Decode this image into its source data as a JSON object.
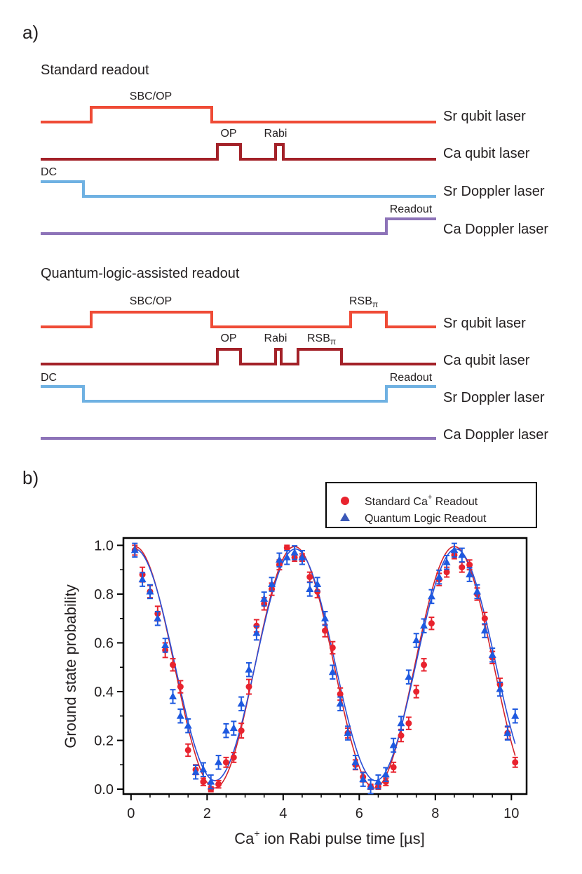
{
  "panel_a": {
    "label": "a)",
    "standard": {
      "title": "Standard readout",
      "channels": [
        {
          "name": "Sr qubit laser",
          "color": "#ef4b36",
          "pulses": [
            {
              "label": "SBC/OP",
              "label_sub": ""
            }
          ]
        },
        {
          "name": "Ca qubit laser",
          "color": "#a32128",
          "pulses": [
            {
              "label": "OP",
              "label_sub": ""
            },
            {
              "label": "Rabi",
              "label_sub": ""
            }
          ]
        },
        {
          "name": "Sr Doppler laser",
          "color": "#6fb1e2",
          "pulses": [
            {
              "label": "DC",
              "label_sub": ""
            }
          ]
        },
        {
          "name": "Ca Doppler laser",
          "color": "#8d73b8",
          "pulses": [
            {
              "label": "Readout",
              "label_sub": ""
            }
          ]
        }
      ]
    },
    "quantum": {
      "title": "Quantum-logic-assisted readout",
      "channels": [
        {
          "name": "Sr qubit laser",
          "color": "#ef4b36",
          "pulses": [
            {
              "label": "SBC/OP",
              "label_sub": ""
            },
            {
              "label": "RSB",
              "label_sub": "π"
            }
          ]
        },
        {
          "name": "Ca qubit laser",
          "color": "#a32128",
          "pulses": [
            {
              "label": "OP",
              "label_sub": ""
            },
            {
              "label": "Rabi",
              "label_sub": ""
            },
            {
              "label": "RSB",
              "label_sub": "π"
            }
          ]
        },
        {
          "name": "Sr Doppler laser",
          "color": "#6fb1e2",
          "pulses": [
            {
              "label": "DC",
              "label_sub": ""
            },
            {
              "label": "Readout",
              "label_sub": ""
            }
          ]
        },
        {
          "name": "Ca Doppler laser",
          "color": "#8d73b8",
          "pulses": []
        }
      ]
    }
  },
  "panel_b": {
    "label": "b)",
    "chart_data": {
      "type": "scatter",
      "xlabel": "Ca",
      "xlabel_sup": "+",
      "xlabel_rest": " ion Rabi pulse time [µs]",
      "ylabel": "Ground state probability",
      "xlim": [
        -0.2,
        10.4
      ],
      "ylim": [
        -0.02,
        1.03
      ],
      "xticks": [
        0,
        2,
        4,
        6,
        8,
        10
      ],
      "yticks": [
        0.0,
        0.2,
        0.4,
        0.6,
        0.8,
        1.0
      ],
      "ytick_labels": [
        "0.0",
        "0.2",
        "0.4",
        "0.6",
        "0.8",
        "1.0"
      ],
      "legend": {
        "position": "top-right"
      },
      "series": [
        {
          "name": "Standard Ca",
          "name_sup": "+",
          "name_rest": " Readout",
          "marker": "circle",
          "color": "#e8232e",
          "fit_color": "#d4232a",
          "fit": {
            "amplitude": 0.495,
            "offset": 0.5,
            "period": 4.2,
            "phase_x": 0.1
          },
          "x": [
            0.1,
            0.3,
            0.5,
            0.7,
            0.9,
            1.1,
            1.3,
            1.5,
            1.7,
            1.9,
            2.1,
            2.3,
            2.5,
            2.7,
            2.9,
            3.1,
            3.3,
            3.5,
            3.7,
            3.9,
            4.1,
            4.3,
            4.5,
            4.7,
            4.9,
            5.1,
            5.3,
            5.5,
            5.7,
            5.9,
            6.1,
            6.3,
            6.5,
            6.7,
            6.9,
            7.1,
            7.3,
            7.5,
            7.7,
            7.9,
            8.1,
            8.3,
            8.5,
            8.7,
            8.9,
            9.1,
            9.3,
            9.5,
            9.7,
            9.9,
            10.1
          ],
          "y": [
            0.98,
            0.88,
            0.81,
            0.72,
            0.57,
            0.51,
            0.42,
            0.16,
            0.08,
            0.03,
            0.0,
            0.02,
            0.11,
            0.13,
            0.24,
            0.42,
            0.67,
            0.76,
            0.82,
            0.92,
            0.99,
            0.95,
            0.95,
            0.87,
            0.81,
            0.65,
            0.58,
            0.39,
            0.23,
            0.1,
            0.05,
            0.01,
            0.01,
            0.03,
            0.09,
            0.22,
            0.27,
            0.4,
            0.51,
            0.68,
            0.86,
            0.89,
            0.96,
            0.91,
            0.92,
            0.8,
            0.7,
            0.54,
            0.43,
            0.23,
            0.11
          ],
          "err": [
            0.02,
            0.03,
            0.025,
            0.03,
            0.03,
            0.025,
            0.025,
            0.025,
            0.02,
            0.015,
            0.01,
            0.015,
            0.02,
            0.02,
            0.03,
            0.03,
            0.025,
            0.025,
            0.025,
            0.02,
            0.01,
            0.015,
            0.015,
            0.02,
            0.025,
            0.025,
            0.025,
            0.025,
            0.02,
            0.02,
            0.02,
            0.01,
            0.01,
            0.015,
            0.02,
            0.025,
            0.025,
            0.025,
            0.025,
            0.025,
            0.025,
            0.02,
            0.015,
            0.02,
            0.02,
            0.025,
            0.025,
            0.025,
            0.025,
            0.025,
            0.02
          ]
        },
        {
          "name": "Quantum Logic Readout",
          "name_sup": "",
          "name_rest": "",
          "marker": "triangle",
          "color": "#1e59e0",
          "fit_color": "#2a4fd6",
          "fit": {
            "amplitude": 0.475,
            "offset": 0.51,
            "period": 4.22,
            "phase_x": 0.1
          },
          "x": [
            0.1,
            0.3,
            0.5,
            0.7,
            0.9,
            1.1,
            1.3,
            1.5,
            1.7,
            1.9,
            2.1,
            2.3,
            2.5,
            2.7,
            2.9,
            3.1,
            3.3,
            3.5,
            3.7,
            3.9,
            4.1,
            4.3,
            4.5,
            4.7,
            4.9,
            5.1,
            5.3,
            5.5,
            5.7,
            5.9,
            6.1,
            6.3,
            6.5,
            6.7,
            6.9,
            7.1,
            7.3,
            7.5,
            7.7,
            7.9,
            8.1,
            8.3,
            8.5,
            8.7,
            8.9,
            9.1,
            9.3,
            9.5,
            9.7,
            9.9,
            10.1
          ],
          "y": [
            0.98,
            0.86,
            0.81,
            0.7,
            0.59,
            0.38,
            0.3,
            0.26,
            0.07,
            0.08,
            0.03,
            0.11,
            0.24,
            0.25,
            0.35,
            0.49,
            0.64,
            0.78,
            0.84,
            0.94,
            0.95,
            0.97,
            0.95,
            0.82,
            0.84,
            0.7,
            0.48,
            0.35,
            0.23,
            0.11,
            0.04,
            0.01,
            0.03,
            0.06,
            0.18,
            0.27,
            0.46,
            0.61,
            0.67,
            0.79,
            0.87,
            0.93,
            0.98,
            0.96,
            0.88,
            0.81,
            0.65,
            0.55,
            0.41,
            0.23,
            0.3
          ]
        }
      ]
    }
  }
}
